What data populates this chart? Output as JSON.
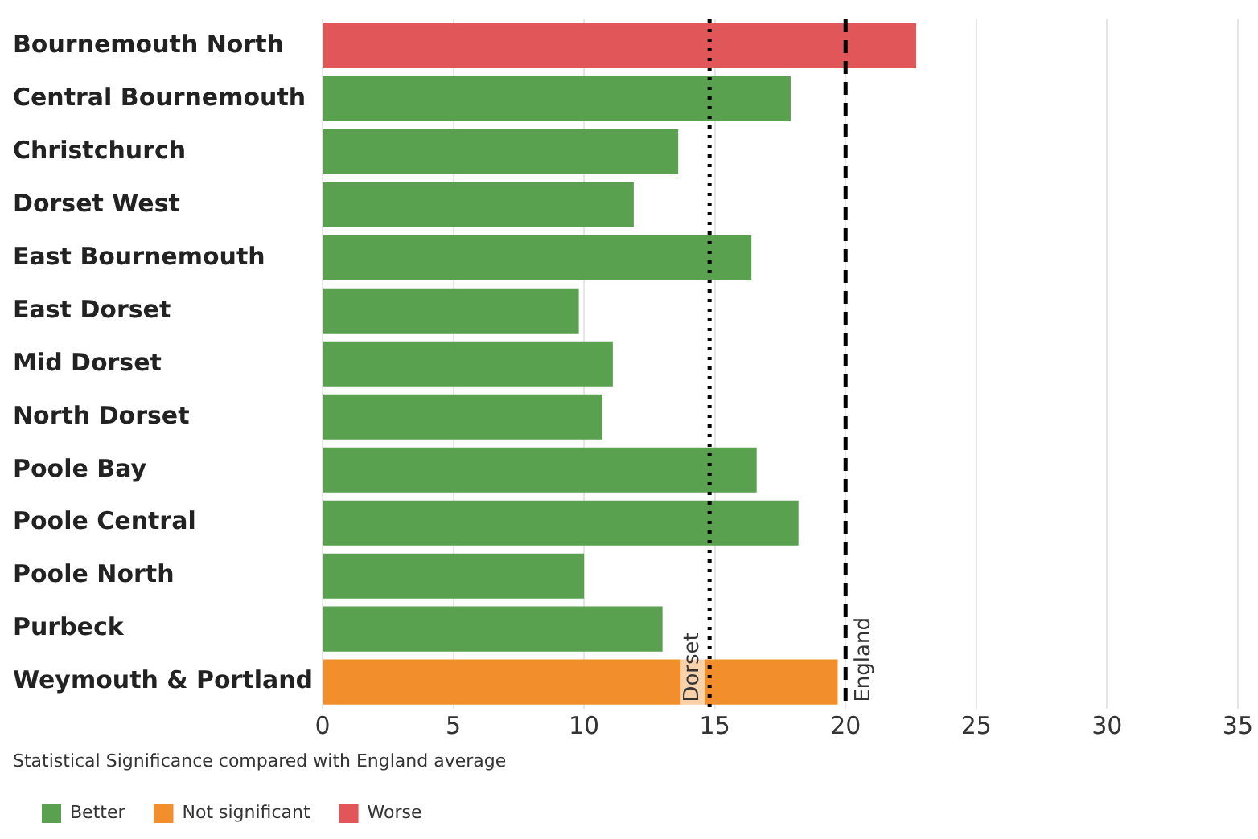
{
  "chart_data": {
    "type": "bar",
    "orientation": "horizontal",
    "stacked": true,
    "categories": [
      "Bournemouth North",
      "Central Bournemouth",
      "Christchurch",
      "Dorset West",
      "East Bournemouth",
      "East Dorset",
      "Mid Dorset",
      "North Dorset",
      "Poole Bay",
      "Poole Central",
      "Poole North",
      "Purbeck",
      "Weymouth & Portland"
    ],
    "series": [
      {
        "name": "Better",
        "color": "#59a14f",
        "values": [
          null,
          17.9,
          13.6,
          11.9,
          16.4,
          9.8,
          11.1,
          10.7,
          16.6,
          18.2,
          10.0,
          13.0,
          null
        ]
      },
      {
        "name": "Not significant",
        "color": "#f28e2b",
        "values": [
          null,
          null,
          null,
          null,
          null,
          null,
          null,
          null,
          null,
          null,
          null,
          null,
          19.7
        ]
      },
      {
        "name": "Worse",
        "color": "#e15759",
        "values": [
          22.7,
          null,
          null,
          null,
          null,
          null,
          null,
          null,
          null,
          null,
          null,
          null,
          null
        ]
      }
    ],
    "xlim": [
      0,
      35
    ],
    "xticks": [
      0,
      5,
      10,
      15,
      20,
      25,
      30,
      35
    ],
    "grid": "x",
    "legend": "bottom left",
    "legend_title": "Statistical Significance compared with England average",
    "ref_lines": [
      {
        "axis": "x",
        "value": 14.8,
        "label": "Dorset",
        "line_style": "dotted",
        "color": "#000000"
      },
      {
        "axis": "x",
        "value": 20,
        "label": "England",
        "line_style": "dashed",
        "color": "#000000"
      }
    ]
  }
}
